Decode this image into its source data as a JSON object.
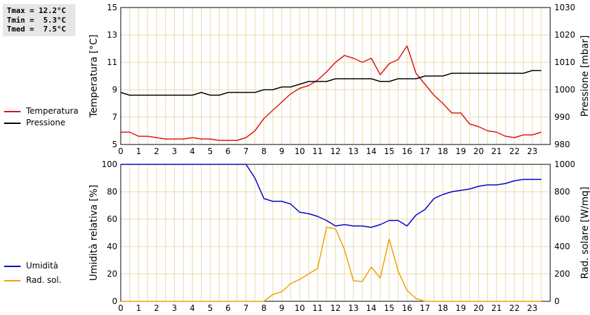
{
  "stats": {
    "lines": [
      "Tmax = 12.2°C",
      "Tmin =  5.3°C",
      "Tmed =  7.5°C"
    ]
  },
  "chart_data": [
    {
      "type": "line",
      "xlabel": "",
      "ylabel": "Temperatura [°C]",
      "y2label": "Pressione [mbar]",
      "xlim": [
        0,
        24
      ],
      "x_ticks": [
        "0",
        "1",
        "2",
        "3",
        "4",
        "5",
        "6",
        "7",
        "8",
        "9",
        "10",
        "11",
        "12",
        "13",
        "14",
        "15",
        "16",
        "17",
        "18",
        "19",
        "20",
        "21",
        "22",
        "23"
      ],
      "ylim": [
        5,
        15
      ],
      "y_ticks": [
        "5",
        "7",
        "9",
        "11",
        "13",
        "15"
      ],
      "y2lim": [
        980,
        1030
      ],
      "y2_ticks": [
        "980",
        "990",
        "1000",
        "1010",
        "1020",
        "1030"
      ],
      "grid": true,
      "legend": [
        {
          "name": "Temperatura",
          "color": "#e01010"
        },
        {
          "name": "Pressione",
          "color": "#000000"
        }
      ],
      "series": [
        {
          "name": "Temperatura",
          "axis": "left",
          "color": "#e01010",
          "x": [
            0,
            0.5,
            1,
            1.5,
            2,
            2.5,
            3,
            3.5,
            4,
            4.5,
            5,
            5.5,
            6,
            6.5,
            7,
            7.5,
            8,
            8.5,
            9,
            9.5,
            10,
            10.5,
            11,
            11.5,
            12,
            12.5,
            13,
            13.5,
            14,
            14.5,
            15,
            15.5,
            16,
            16.5,
            17,
            17.5,
            18,
            18.5,
            19,
            19.5,
            20,
            20.5,
            21,
            21.5,
            22,
            22.5,
            23,
            23.5
          ],
          "values": [
            5.9,
            5.9,
            5.6,
            5.6,
            5.5,
            5.4,
            5.4,
            5.4,
            5.5,
            5.4,
            5.4,
            5.3,
            5.3,
            5.3,
            5.5,
            6.0,
            6.9,
            7.5,
            8.1,
            8.7,
            9.1,
            9.3,
            9.7,
            10.3,
            11.0,
            11.5,
            11.3,
            11.0,
            11.3,
            10.1,
            10.9,
            11.2,
            12.2,
            10.2,
            9.4,
            8.6,
            8.0,
            7.3,
            7.3,
            6.5,
            6.3,
            6.0,
            5.9,
            5.6,
            5.5,
            5.7,
            5.7,
            5.9
          ]
        },
        {
          "name": "Pressione",
          "axis": "right",
          "color": "#000000",
          "x": [
            0,
            0.5,
            1,
            1.5,
            2,
            2.5,
            3,
            3.5,
            4,
            4.5,
            5,
            5.5,
            6,
            6.5,
            7,
            7.5,
            8,
            8.5,
            9,
            9.5,
            10,
            10.5,
            11,
            11.5,
            12,
            12.5,
            13,
            13.5,
            14,
            14.5,
            15,
            15.5,
            16,
            16.5,
            17,
            17.5,
            18,
            18.5,
            19,
            19.5,
            20,
            20.5,
            21,
            21.5,
            22,
            22.5,
            23,
            23.5
          ],
          "values": [
            999,
            998,
            998,
            998,
            998,
            998,
            998,
            998,
            998,
            999,
            998,
            998,
            999,
            999,
            999,
            999,
            1000,
            1000,
            1001,
            1001,
            1002,
            1003,
            1003,
            1003,
            1004,
            1004,
            1004,
            1004,
            1004,
            1003,
            1003,
            1004,
            1004,
            1004,
            1005,
            1005,
            1005,
            1006,
            1006,
            1006,
            1006,
            1006,
            1006,
            1006,
            1006,
            1006,
            1007,
            1007
          ]
        }
      ]
    },
    {
      "type": "line",
      "xlabel": "",
      "ylabel": "Umidità relativa [%]",
      "y2label": "Rad. solare [W/mq]",
      "xlim": [
        0,
        24
      ],
      "x_ticks": [
        "0",
        "1",
        "2",
        "3",
        "4",
        "5",
        "6",
        "7",
        "8",
        "9",
        "10",
        "11",
        "12",
        "13",
        "14",
        "15",
        "16",
        "17",
        "18",
        "19",
        "20",
        "21",
        "22",
        "23"
      ],
      "ylim": [
        0,
        100
      ],
      "y_ticks": [
        "0",
        "20",
        "40",
        "60",
        "80",
        "100"
      ],
      "y2lim": [
        0,
        1000
      ],
      "y2_ticks": [
        "0",
        "200",
        "400",
        "600",
        "800",
        "1000"
      ],
      "grid": true,
      "legend": [
        {
          "name": "Umidità",
          "color": "#0000cc"
        },
        {
          "name": "Rad. sol.",
          "color": "#f0a000"
        }
      ],
      "series": [
        {
          "name": "Umidità",
          "axis": "left",
          "color": "#0000cc",
          "x": [
            0,
            0.5,
            1,
            1.5,
            2,
            2.5,
            3,
            3.5,
            4,
            4.5,
            5,
            5.5,
            6,
            6.5,
            7,
            7.5,
            8,
            8.5,
            9,
            9.5,
            10,
            10.5,
            11,
            11.5,
            12,
            12.5,
            13,
            13.5,
            14,
            14.5,
            15,
            15.5,
            16,
            16.5,
            17,
            17.5,
            18,
            18.5,
            19,
            19.5,
            20,
            20.5,
            21,
            21.5,
            22,
            22.5,
            23,
            23.5
          ],
          "values": [
            100,
            100,
            100,
            100,
            100,
            100,
            100,
            100,
            100,
            100,
            100,
            100,
            100,
            100,
            100,
            90,
            75,
            73,
            73,
            71,
            65,
            64,
            62,
            59,
            55,
            56,
            55,
            55,
            54,
            56,
            59,
            59,
            55,
            63,
            67,
            75,
            78,
            80,
            81,
            82,
            84,
            85,
            85,
            86,
            88,
            89,
            89,
            89
          ]
        },
        {
          "name": "Rad. sol.",
          "axis": "right",
          "color": "#f0a000",
          "x": [
            0,
            0.5,
            1,
            1.5,
            2,
            2.5,
            3,
            3.5,
            4,
            4.5,
            5,
            5.5,
            6,
            6.5,
            7,
            7.5,
            8,
            8.5,
            9,
            9.5,
            10,
            10.5,
            11,
            11.5,
            12,
            12.5,
            13,
            13.5,
            14,
            14.5,
            15,
            15.5,
            16,
            16.5,
            17,
            17.5,
            18,
            18.5,
            19,
            19.5,
            20,
            20.5,
            21,
            21.5,
            22,
            22.5,
            23,
            23.5
          ],
          "values": [
            0,
            0,
            0,
            0,
            0,
            0,
            0,
            0,
            0,
            0,
            0,
            0,
            0,
            0,
            0,
            0,
            0,
            50,
            70,
            130,
            160,
            200,
            240,
            540,
            530,
            380,
            150,
            145,
            250,
            170,
            455,
            220,
            80,
            20,
            0,
            0,
            0,
            0,
            0,
            0,
            0,
            0,
            0,
            0,
            0,
            0,
            0,
            0
          ]
        }
      ]
    }
  ]
}
